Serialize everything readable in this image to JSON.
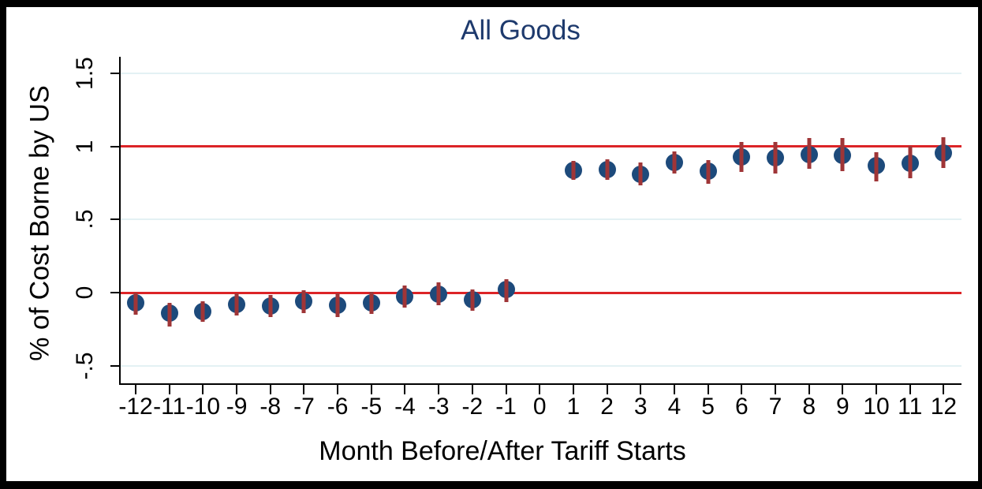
{
  "chart_data": {
    "type": "scatter",
    "title": "All Goods",
    "xlabel": "Month Before/After Tariff Starts",
    "ylabel": "% of Cost Borne by US",
    "xlim": [
      -12.47,
      12.53
    ],
    "ylim": [
      -0.62,
      1.613
    ],
    "grid": true,
    "gridline_values": [
      -0.5,
      0.5,
      1.5
    ],
    "reference_lines": [
      0,
      1
    ],
    "x_ticks": [
      -12,
      -11,
      -10,
      -9,
      -8,
      -7,
      -6,
      -5,
      -4,
      -3,
      -2,
      -1,
      0,
      1,
      2,
      3,
      4,
      5,
      6,
      7,
      8,
      9,
      10,
      11,
      12
    ],
    "y_ticks": [
      {
        "value": -0.5,
        "label": "-.5"
      },
      {
        "value": 0,
        "label": "0"
      },
      {
        "value": 0.5,
        "label": ".5"
      },
      {
        "value": 1,
        "label": "1"
      },
      {
        "value": 1.5,
        "label": "1.5"
      }
    ],
    "series": [
      {
        "name": "coefficient-with-95ci",
        "points": [
          {
            "x": -12,
            "y": -0.07,
            "lo": -0.15,
            "hi": 0.0
          },
          {
            "x": -11,
            "y": -0.14,
            "lo": -0.23,
            "hi": -0.07
          },
          {
            "x": -10,
            "y": -0.13,
            "lo": -0.2,
            "hi": -0.06
          },
          {
            "x": -9,
            "y": -0.08,
            "lo": -0.155,
            "hi": -0.005
          },
          {
            "x": -8,
            "y": -0.09,
            "lo": -0.165,
            "hi": -0.015
          },
          {
            "x": -7,
            "y": -0.06,
            "lo": -0.14,
            "hi": 0.015
          },
          {
            "x": -6,
            "y": -0.085,
            "lo": -0.165,
            "hi": -0.005
          },
          {
            "x": -5,
            "y": -0.07,
            "lo": -0.145,
            "hi": 0.005
          },
          {
            "x": -4,
            "y": -0.025,
            "lo": -0.1,
            "hi": 0.05
          },
          {
            "x": -3,
            "y": -0.01,
            "lo": -0.085,
            "hi": 0.07
          },
          {
            "x": -2,
            "y": -0.05,
            "lo": -0.125,
            "hi": 0.02
          },
          {
            "x": -1,
            "y": 0.02,
            "lo": -0.065,
            "hi": 0.09
          },
          {
            "x": 1,
            "y": 0.835,
            "lo": 0.77,
            "hi": 0.9
          },
          {
            "x": 2,
            "y": 0.84,
            "lo": 0.77,
            "hi": 0.91
          },
          {
            "x": 3,
            "y": 0.81,
            "lo": 0.735,
            "hi": 0.89
          },
          {
            "x": 4,
            "y": 0.89,
            "lo": 0.815,
            "hi": 0.965
          },
          {
            "x": 5,
            "y": 0.83,
            "lo": 0.745,
            "hi": 0.905
          },
          {
            "x": 6,
            "y": 0.93,
            "lo": 0.825,
            "hi": 1.03
          },
          {
            "x": 7,
            "y": 0.925,
            "lo": 0.815,
            "hi": 1.03
          },
          {
            "x": 8,
            "y": 0.945,
            "lo": 0.845,
            "hi": 1.06
          },
          {
            "x": 9,
            "y": 0.94,
            "lo": 0.83,
            "hi": 1.055
          },
          {
            "x": 10,
            "y": 0.87,
            "lo": 0.76,
            "hi": 0.96
          },
          {
            "x": 11,
            "y": 0.885,
            "lo": 0.78,
            "hi": 1.005
          },
          {
            "x": 12,
            "y": 0.955,
            "lo": 0.85,
            "hi": 1.065
          }
        ]
      }
    ],
    "colors": {
      "title": "#1e3a6d",
      "marker": "#1d4a7b",
      "ci_bar": "#9f3537",
      "reference_line": "#dc2427",
      "gridline": "#e3f1f4",
      "axis": "#000000",
      "background": "#ffffff",
      "border": "#000000"
    },
    "legend": "none"
  }
}
